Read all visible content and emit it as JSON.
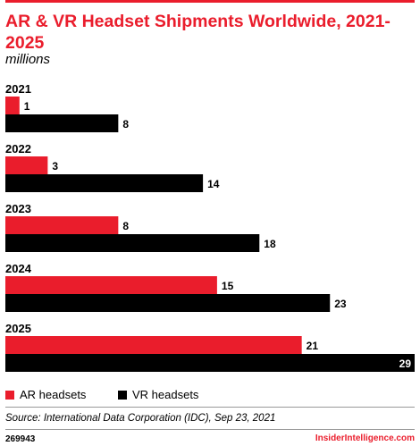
{
  "header": {
    "title": "AR & VR Headset Shipments Worldwide, 2021-2025",
    "subtitle": "millions"
  },
  "chart_data": {
    "type": "bar",
    "orientation": "horizontal",
    "title": "AR & VR Headset Shipments Worldwide, 2021-2025",
    "subtitle": "millions",
    "categories": [
      "2021",
      "2022",
      "2023",
      "2024",
      "2025"
    ],
    "series": [
      {
        "name": "AR headsets",
        "color": "#ea1d2c",
        "values": [
          1,
          3,
          8,
          15,
          21
        ]
      },
      {
        "name": "VR headsets",
        "color": "#000000",
        "values": [
          8,
          14,
          18,
          23,
          29
        ]
      }
    ],
    "xlim": [
      0,
      29
    ],
    "grid": false,
    "legend": "bottom-left"
  },
  "legend": {
    "ar_label": "AR headsets",
    "vr_label": "VR headsets",
    "ar_color": "#ea1d2c",
    "vr_color": "#000000"
  },
  "footer": {
    "source": "Source: International Data Corporation (IDC), Sep 23, 2021",
    "chart_id": "269943",
    "brand": "InsiderIntelligence.com"
  }
}
